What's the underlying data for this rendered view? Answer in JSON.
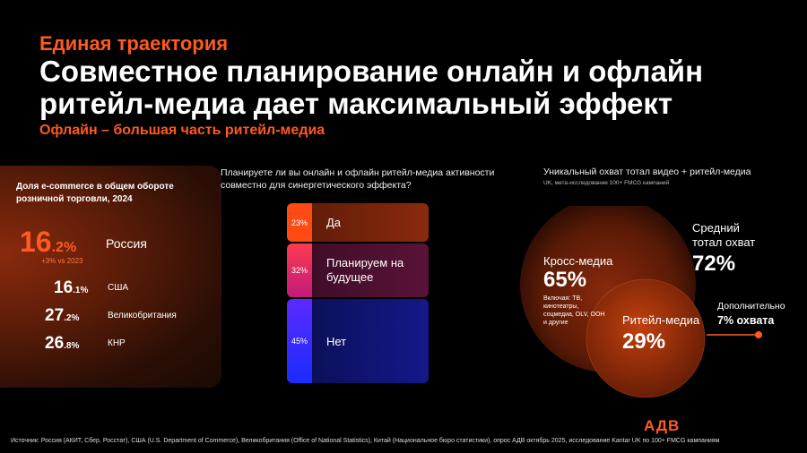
{
  "header": {
    "kicker": "Единая траектория",
    "title": "Совместное планирование онлайн и офлайн ритейл-медиа дает максимальный эффект",
    "subtitle": "Офлайн – большая часть ритейл-медиа"
  },
  "ecom": {
    "title": "Доля e-commerce в общем обороте розничной торговли, 2024",
    "main": {
      "int": "16",
      "dec": ".2",
      "pct": "%",
      "country": "Россия",
      "note": "+3% vs 2023"
    },
    "rows": [
      {
        "int": "16",
        "dec": ".1",
        "pct": "%",
        "country": "США"
      },
      {
        "int": "27",
        "dec": ".2",
        "pct": "%",
        "country": "Великобритания"
      },
      {
        "int": "26",
        "dec": ".8",
        "pct": "%",
        "country": "КНР"
      }
    ]
  },
  "survey": {
    "question": "Планируете ли вы онлайн и офлайн ритейл-медиа активности совместно для синергетического эффекта?",
    "answers": [
      {
        "pct": "23%",
        "label": "Да",
        "value": 23,
        "color": "#ff4a14"
      },
      {
        "pct": "32%",
        "label": "Планируем на будущее",
        "value": 32,
        "color": "#e8206a"
      },
      {
        "pct": "45%",
        "label": "Нет",
        "value": 45,
        "color": "#1a2cff"
      }
    ]
  },
  "reach": {
    "title": "Уникальный охват тотал видео + ритейл-медиа",
    "source": "UK, мета-исследование 100+ FMCG кампаний",
    "cross_label": "Кросс-медиа",
    "cross_value": "65%",
    "cross_note": "Включая: ТВ, кинотеатры, соцмедиа, OLV, OOH и другие",
    "retail_label": "Ритейл-медиа",
    "retail_value": "29%",
    "avg_label": "Средний тотал охват",
    "avg_value": "72%",
    "extra_label": "Дополнительно",
    "extra_value": "7% охвата"
  },
  "footer": {
    "source": "Источник: Россия (АКИТ, Сбер, Росстат), США (U.S. Department of Commerce), Великобритания (Office of National Statistics), Китай (Национальное бюро статистики), опрос АДВ октябрь 2025, исследование Kantar UK по 100+ FMCG кампаниям",
    "logo": "АДВ"
  }
}
